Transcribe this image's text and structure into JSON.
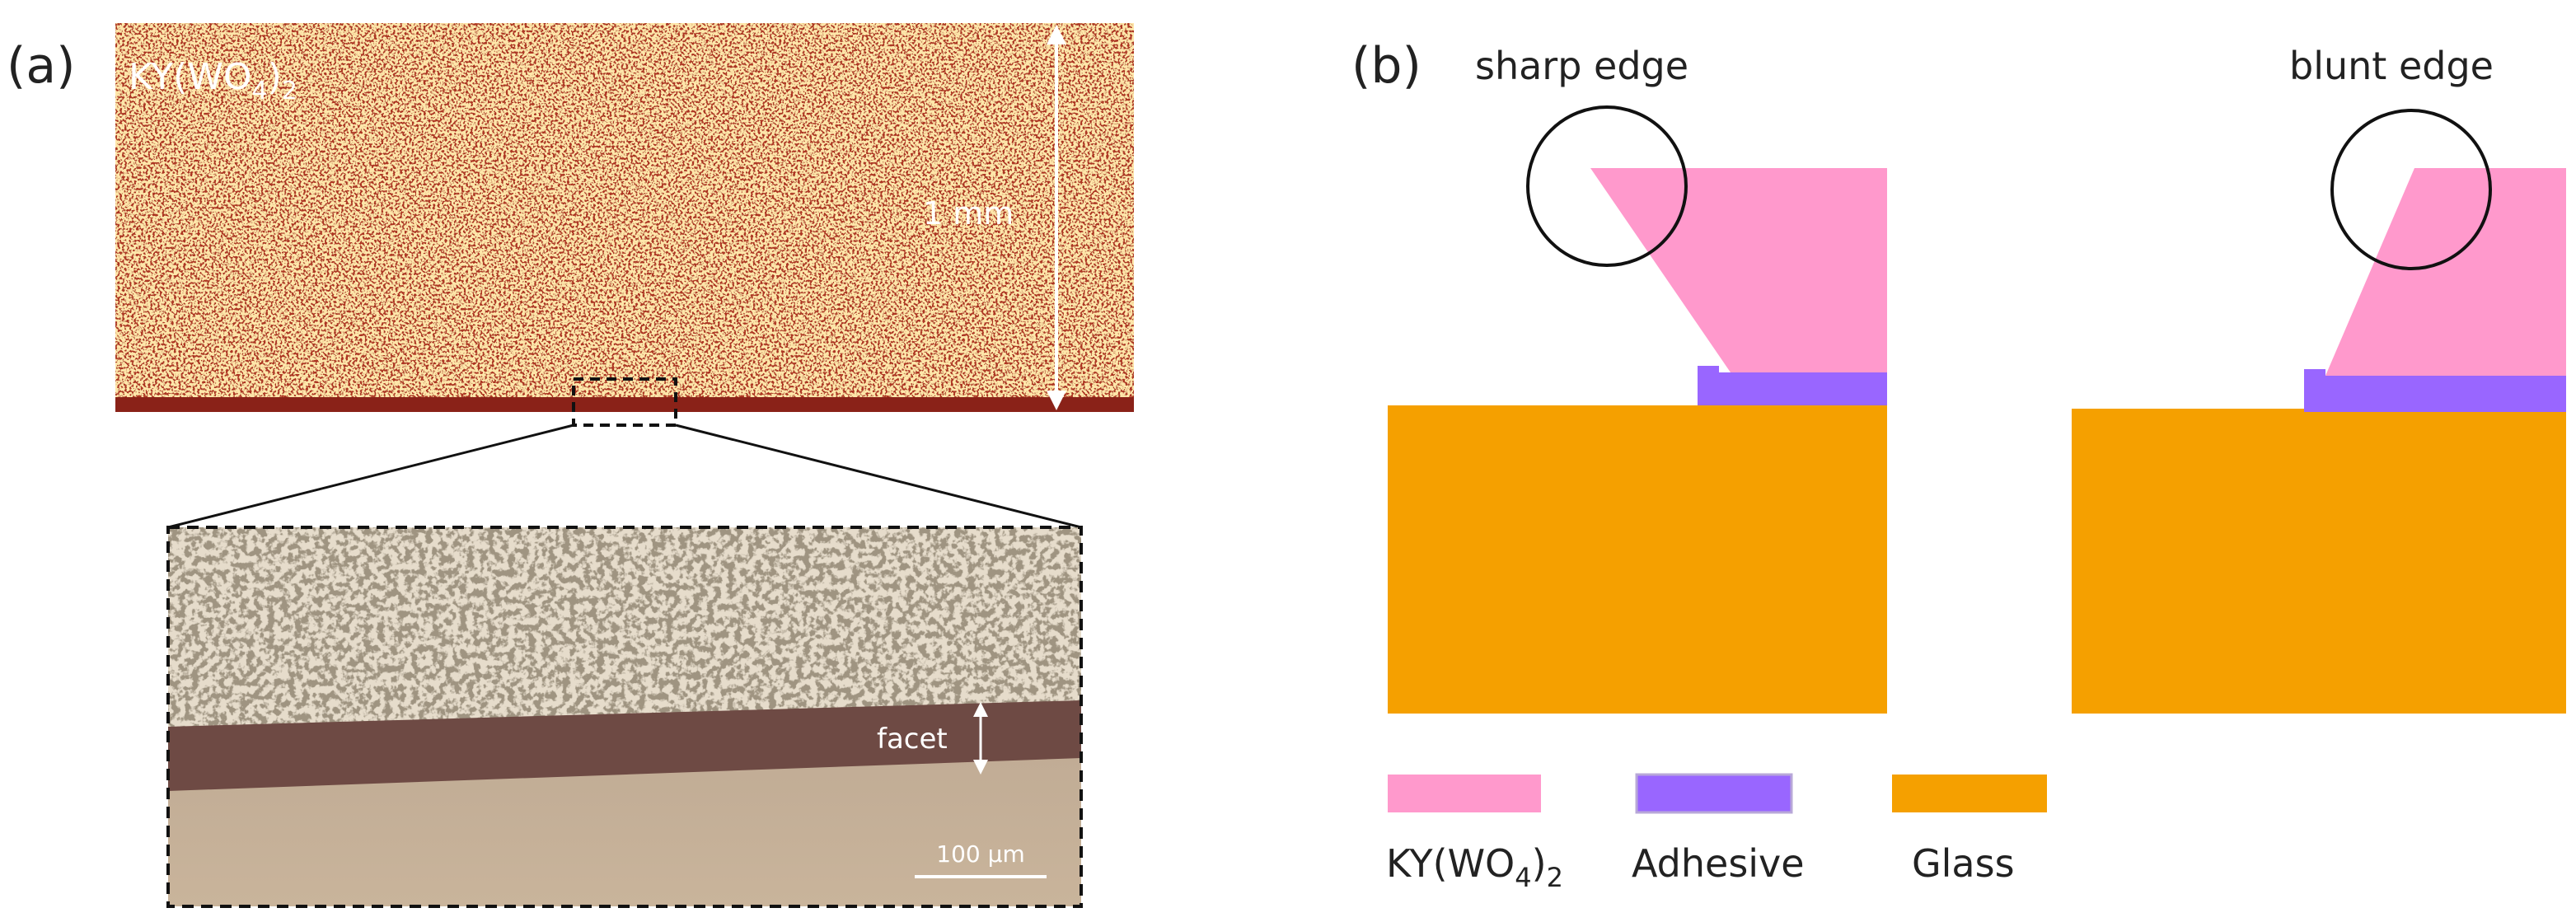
{
  "panel_a": {
    "label": "(a)",
    "material": [
      "KY(WO",
      "4",
      ")",
      "2"
    ],
    "scale": "1 mm",
    "inset": {
      "facet": "facet",
      "scale_bar": "100 µm"
    }
  },
  "panel_b": {
    "label": "(b)",
    "left_label": "sharp edge",
    "right_label": "blunt edge"
  },
  "legend": {
    "material": [
      "KY(WO",
      "4",
      ")",
      "2"
    ],
    "adhesive": "Adhesive",
    "glass": "Glass"
  }
}
